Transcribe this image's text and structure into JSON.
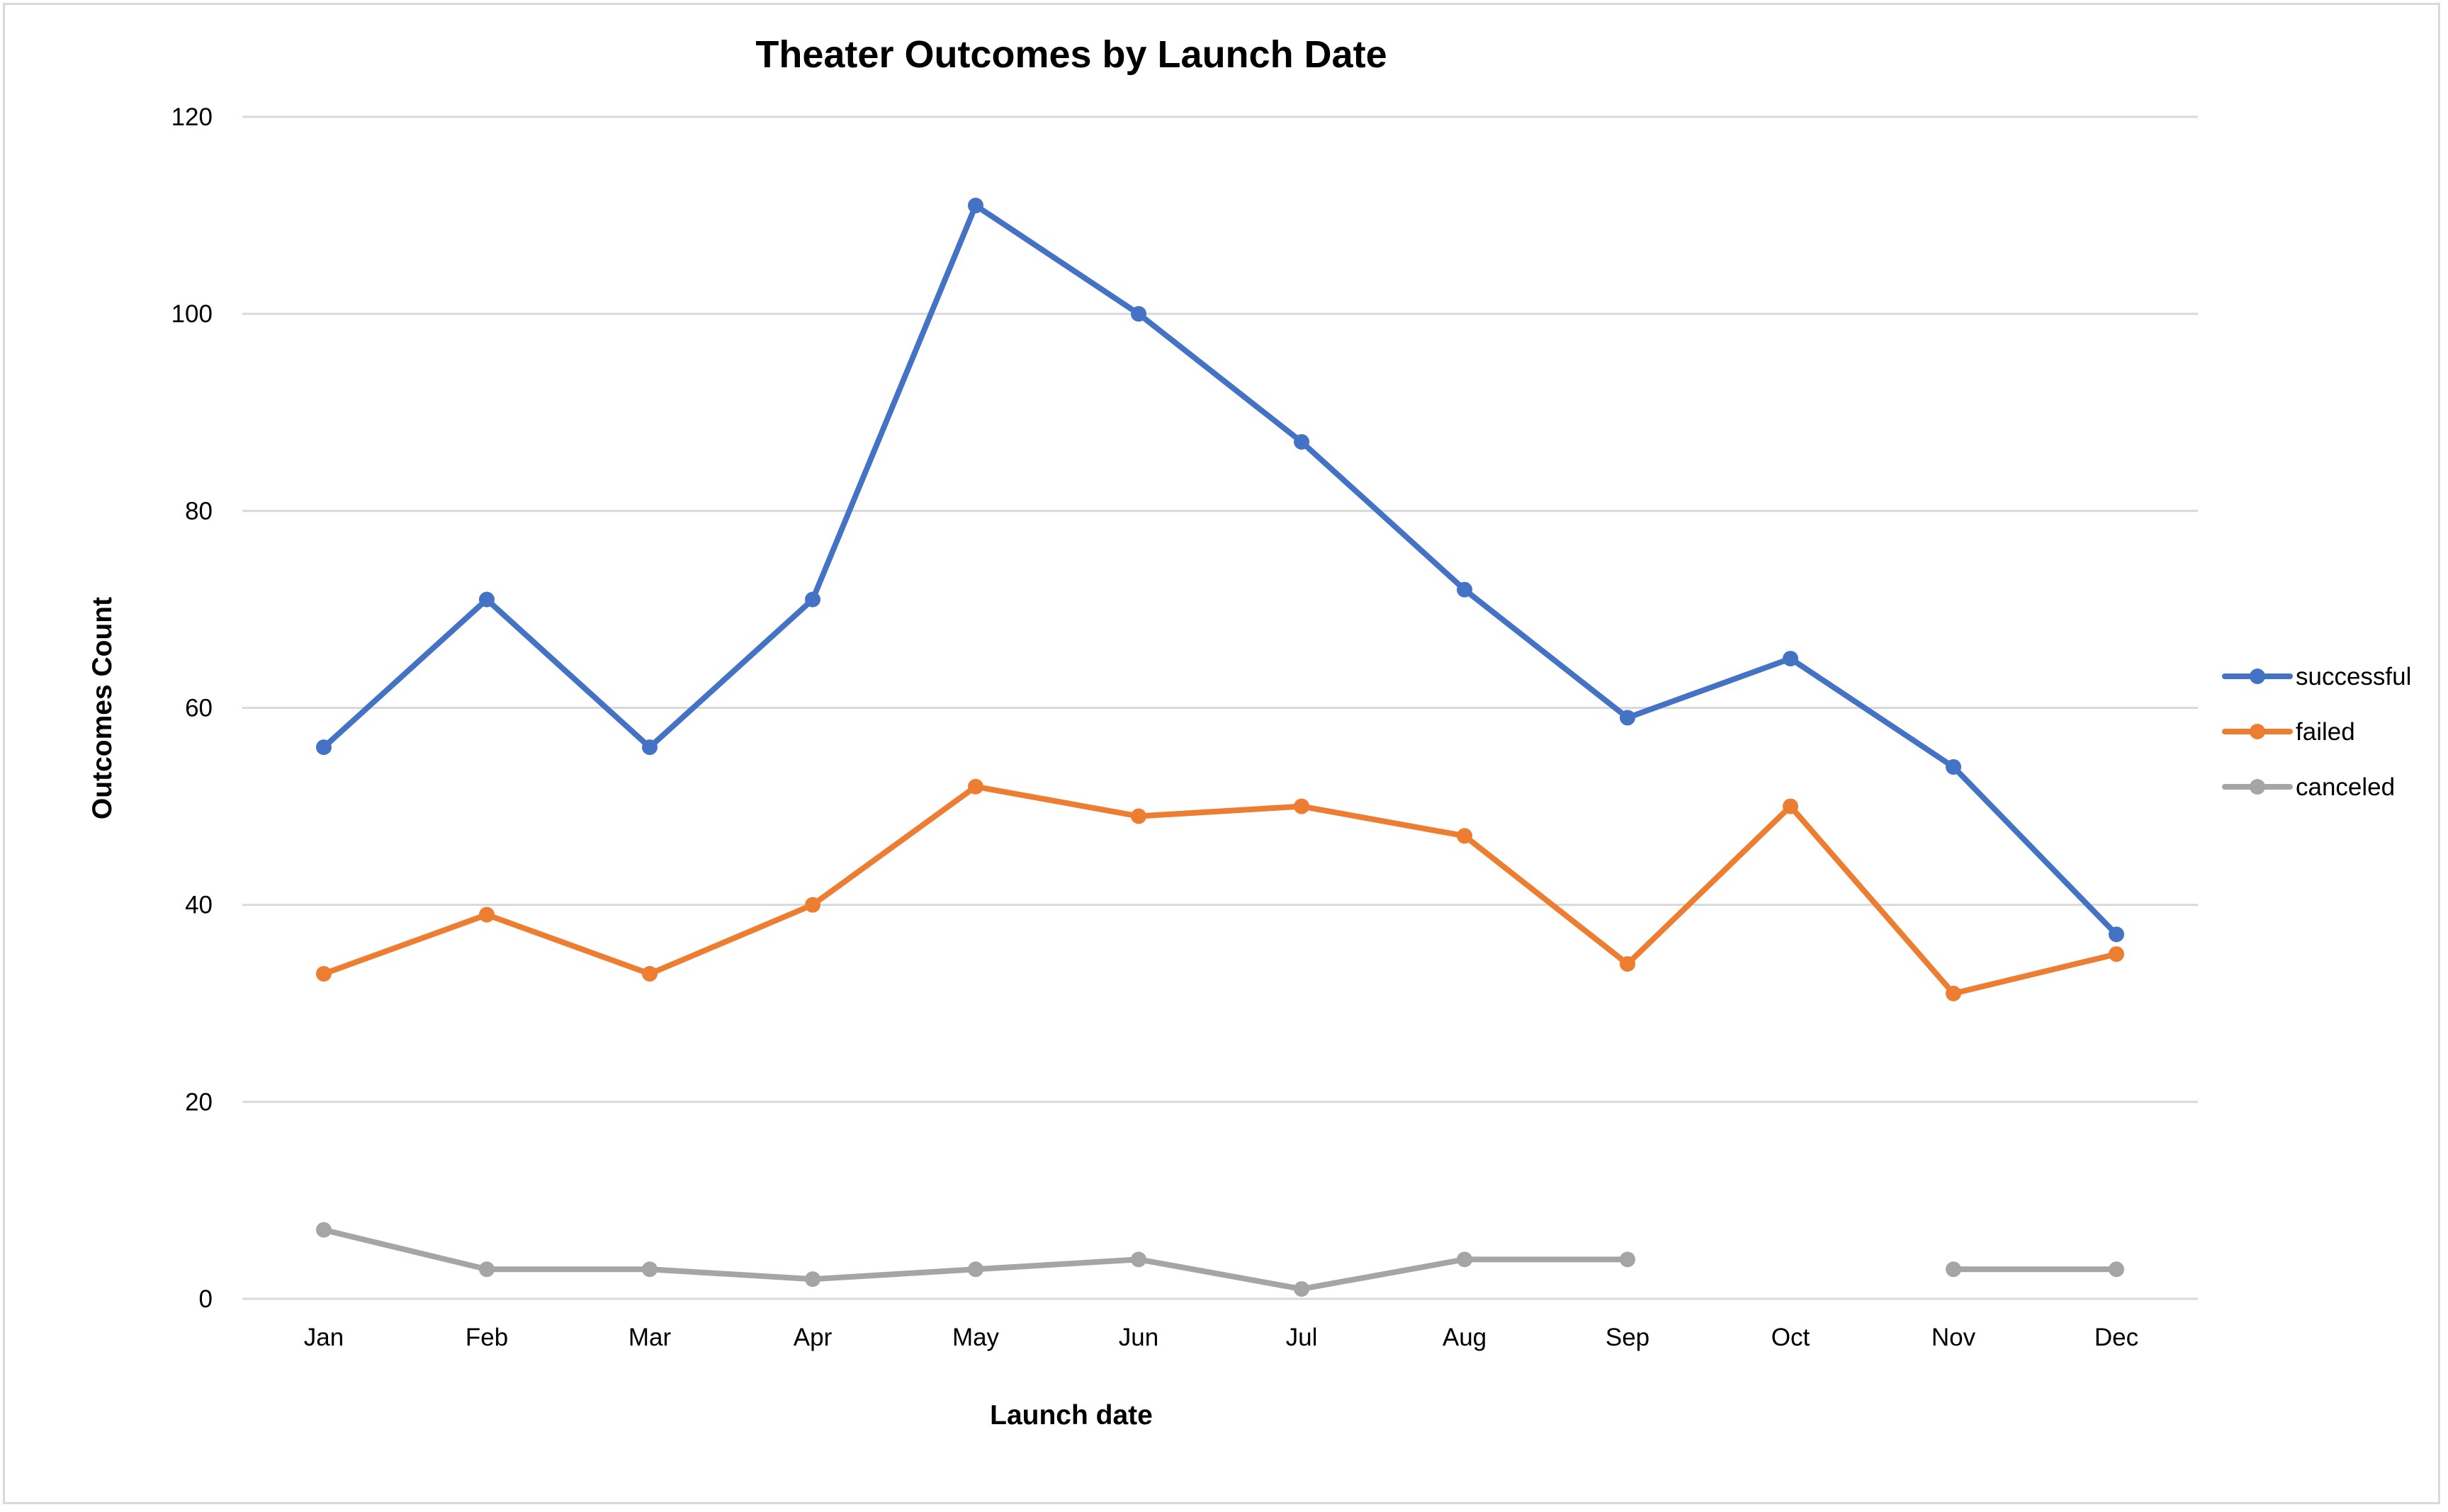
{
  "chart_data": {
    "type": "line",
    "title": "Theater Outcomes by Launch Date",
    "xlabel": "Launch date",
    "ylabel": "Outcomes Count",
    "ylim": [
      0,
      120
    ],
    "yticks": [
      0,
      20,
      40,
      60,
      80,
      100,
      120
    ],
    "grid": true,
    "legend_position": "right",
    "categories": [
      "Jan",
      "Feb",
      "Mar",
      "Apr",
      "May",
      "Jun",
      "Jul",
      "Aug",
      "Sep",
      "Oct",
      "Nov",
      "Dec"
    ],
    "series": [
      {
        "name": "successful",
        "color": "#4472C4",
        "values": [
          56,
          71,
          56,
          71,
          111,
          100,
          87,
          72,
          59,
          65,
          54,
          37
        ]
      },
      {
        "name": "failed",
        "color": "#ED7D31",
        "values": [
          33,
          39,
          33,
          40,
          52,
          49,
          50,
          47,
          34,
          50,
          31,
          35
        ]
      },
      {
        "name": "canceled",
        "color": "#A5A5A5",
        "values": [
          7,
          3,
          3,
          2,
          3,
          4,
          1,
          4,
          4,
          null,
          3,
          3
        ]
      }
    ]
  }
}
